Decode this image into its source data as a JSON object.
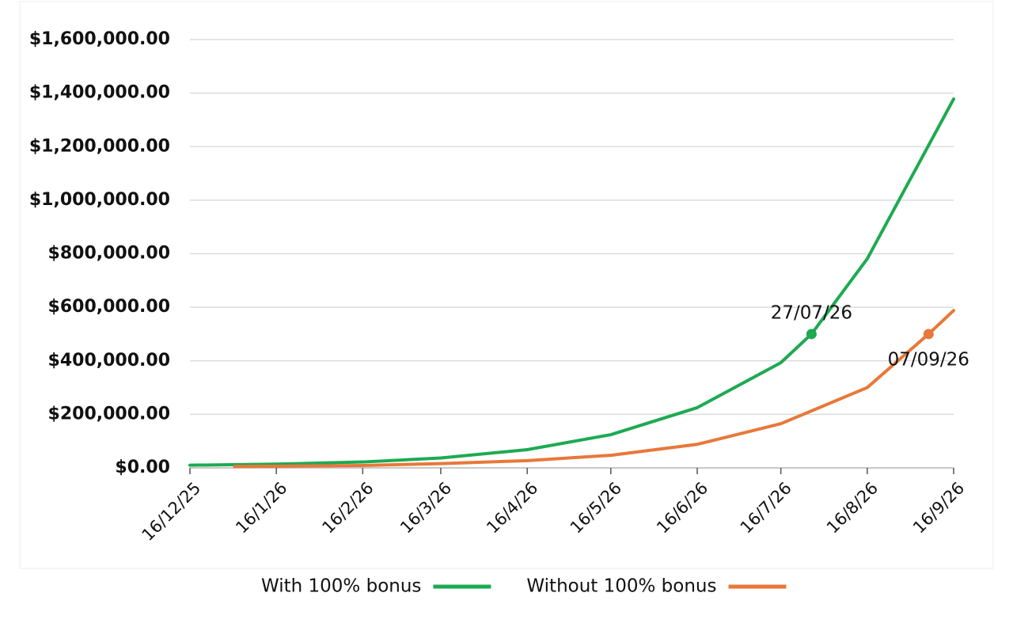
{
  "chart_data": {
    "type": "line",
    "xlim": [
      "2025-12-16",
      "2026-09-16"
    ],
    "xticks": [
      {
        "value": "2025-12-16",
        "label": "16/12/25"
      },
      {
        "value": "2026-01-16",
        "label": "16/1/26"
      },
      {
        "value": "2026-02-16",
        "label": "16/2/26"
      },
      {
        "value": "2026-03-16",
        "label": "16/3/26"
      },
      {
        "value": "2026-04-16",
        "label": "16/4/26"
      },
      {
        "value": "2026-05-16",
        "label": "16/5/26"
      },
      {
        "value": "2026-06-16",
        "label": "16/6/26"
      },
      {
        "value": "2026-07-16",
        "label": "16/7/26"
      },
      {
        "value": "2026-08-16",
        "label": "16/8/26"
      },
      {
        "value": "2026-09-16",
        "label": "16/9/26"
      }
    ],
    "ylim": [
      0,
      1600000
    ],
    "yticks": [
      {
        "value": 0,
        "label": "$0.00"
      },
      {
        "value": 200000,
        "label": "$200,000.00"
      },
      {
        "value": 400000,
        "label": "$400,000.00"
      },
      {
        "value": 600000,
        "label": "$600,000.00"
      },
      {
        "value": 800000,
        "label": "$800,000.00"
      },
      {
        "value": 1000000,
        "label": "$1,000,000.00"
      },
      {
        "value": 1200000,
        "label": "$1,200,000.00"
      },
      {
        "value": 1400000,
        "label": "$1,400,000.00"
      },
      {
        "value": 1600000,
        "label": "$1,600,000.00"
      }
    ],
    "grid": true,
    "legend": "bottom",
    "series": [
      {
        "name": "With 100% bonus",
        "color": "#1daa52",
        "x": [
          "2025-12-16",
          "2026-01-16",
          "2026-02-16",
          "2026-03-16",
          "2026-04-16",
          "2026-05-16",
          "2026-06-16",
          "2026-07-16",
          "2026-07-27",
          "2026-08-16",
          "2026-09-16"
        ],
        "values": [
          10000,
          14000,
          22000,
          37000,
          68000,
          124000,
          225000,
          393000,
          500000,
          781000,
          1378000
        ]
      },
      {
        "name": "Without 100% bonus",
        "color": "#e8783a",
        "x": [
          "2026-01-01",
          "2026-01-16",
          "2026-02-16",
          "2026-03-16",
          "2026-04-16",
          "2026-05-16",
          "2026-06-16",
          "2026-07-16",
          "2026-08-16",
          "2026-09-07",
          "2026-09-16"
        ],
        "values": [
          5000,
          6000,
          9000,
          16000,
          27000,
          47000,
          88000,
          165000,
          300000,
          500000,
          588000
        ]
      }
    ],
    "annotations": [
      {
        "text": "27/07/26",
        "series": 0,
        "x": "2026-07-27",
        "y": 500000
      },
      {
        "text": "07/09/26",
        "series": 1,
        "x": "2026-09-07",
        "y": 500000
      }
    ]
  }
}
